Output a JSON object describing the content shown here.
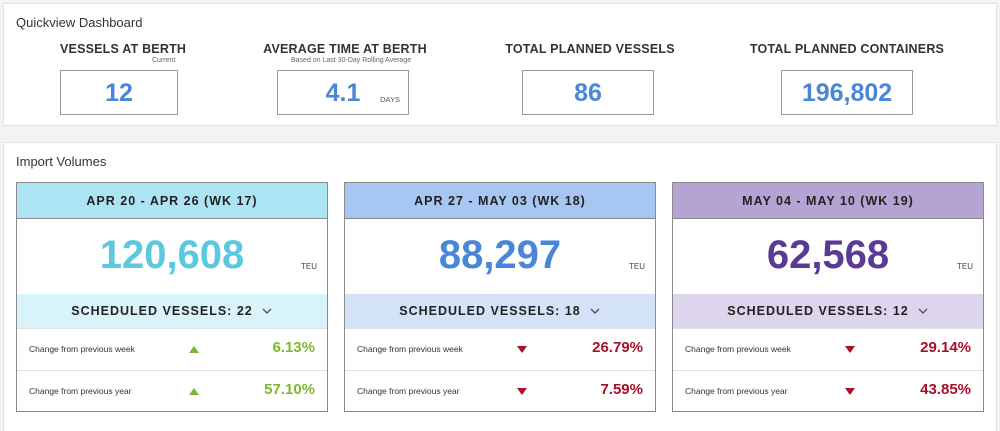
{
  "quickview": {
    "title": "Quickview Dashboard",
    "stats": [
      {
        "label": "VESSELS AT BERTH",
        "sub": "Current",
        "value": "12",
        "unit": ""
      },
      {
        "label": "AVERAGE TIME AT BERTH",
        "sub": "Based on Last 30-Day Rolling Average",
        "value": "4.1",
        "unit": "DAYS"
      },
      {
        "label": "TOTAL PLANNED VESSELS",
        "sub": "",
        "value": "86",
        "unit": ""
      },
      {
        "label": "TOTAL PLANNED CONTAINERS",
        "sub": "",
        "value": "196,802",
        "unit": ""
      }
    ]
  },
  "import": {
    "title": "Import Volumes",
    "weeks": [
      {
        "header": "APR 20 - APR 26 (WK 17)",
        "volume": "120,608",
        "unit": "TEU",
        "scheduled": "SCHEDULED VESSELS: 22",
        "colors": {
          "header": "#ade4f3",
          "sched": "#d9f3fb",
          "value": "#5cc8e0"
        },
        "changes": [
          {
            "label": "Change from previous week",
            "value": "6.13%",
            "direction": "up"
          },
          {
            "label": "Change from previous year",
            "value": "57.10%",
            "direction": "up"
          }
        ]
      },
      {
        "header": "APR 27 - MAY 03 (WK 18)",
        "volume": "88,297",
        "unit": "TEU",
        "scheduled": "SCHEDULED VESSELS: 18",
        "colors": {
          "header": "#a8c6f2",
          "sched": "#d4e2f8",
          "value": "#4a86d8"
        },
        "changes": [
          {
            "label": "Change from previous week",
            "value": "26.79%",
            "direction": "down"
          },
          {
            "label": "Change from previous year",
            "value": "7.59%",
            "direction": "down"
          }
        ]
      },
      {
        "header": "MAY 04 - MAY 10 (WK 19)",
        "volume": "62,568",
        "unit": "TEU",
        "scheduled": "SCHEDULED VESSELS: 12",
        "colors": {
          "header": "#b4a4d4",
          "sched": "#ddd5ec",
          "value": "#5b3a96"
        },
        "changes": [
          {
            "label": "Change from previous week",
            "value": "29.14%",
            "direction": "down"
          },
          {
            "label": "Change from previous year",
            "value": "43.85%",
            "direction": "down"
          }
        ]
      }
    ]
  },
  "icons": {
    "expand": "chevron-down-icon",
    "up": "triangle-up-icon",
    "down": "triangle-down-icon"
  },
  "colors": {
    "up": "#7cb82f",
    "down": "#a8102a"
  }
}
